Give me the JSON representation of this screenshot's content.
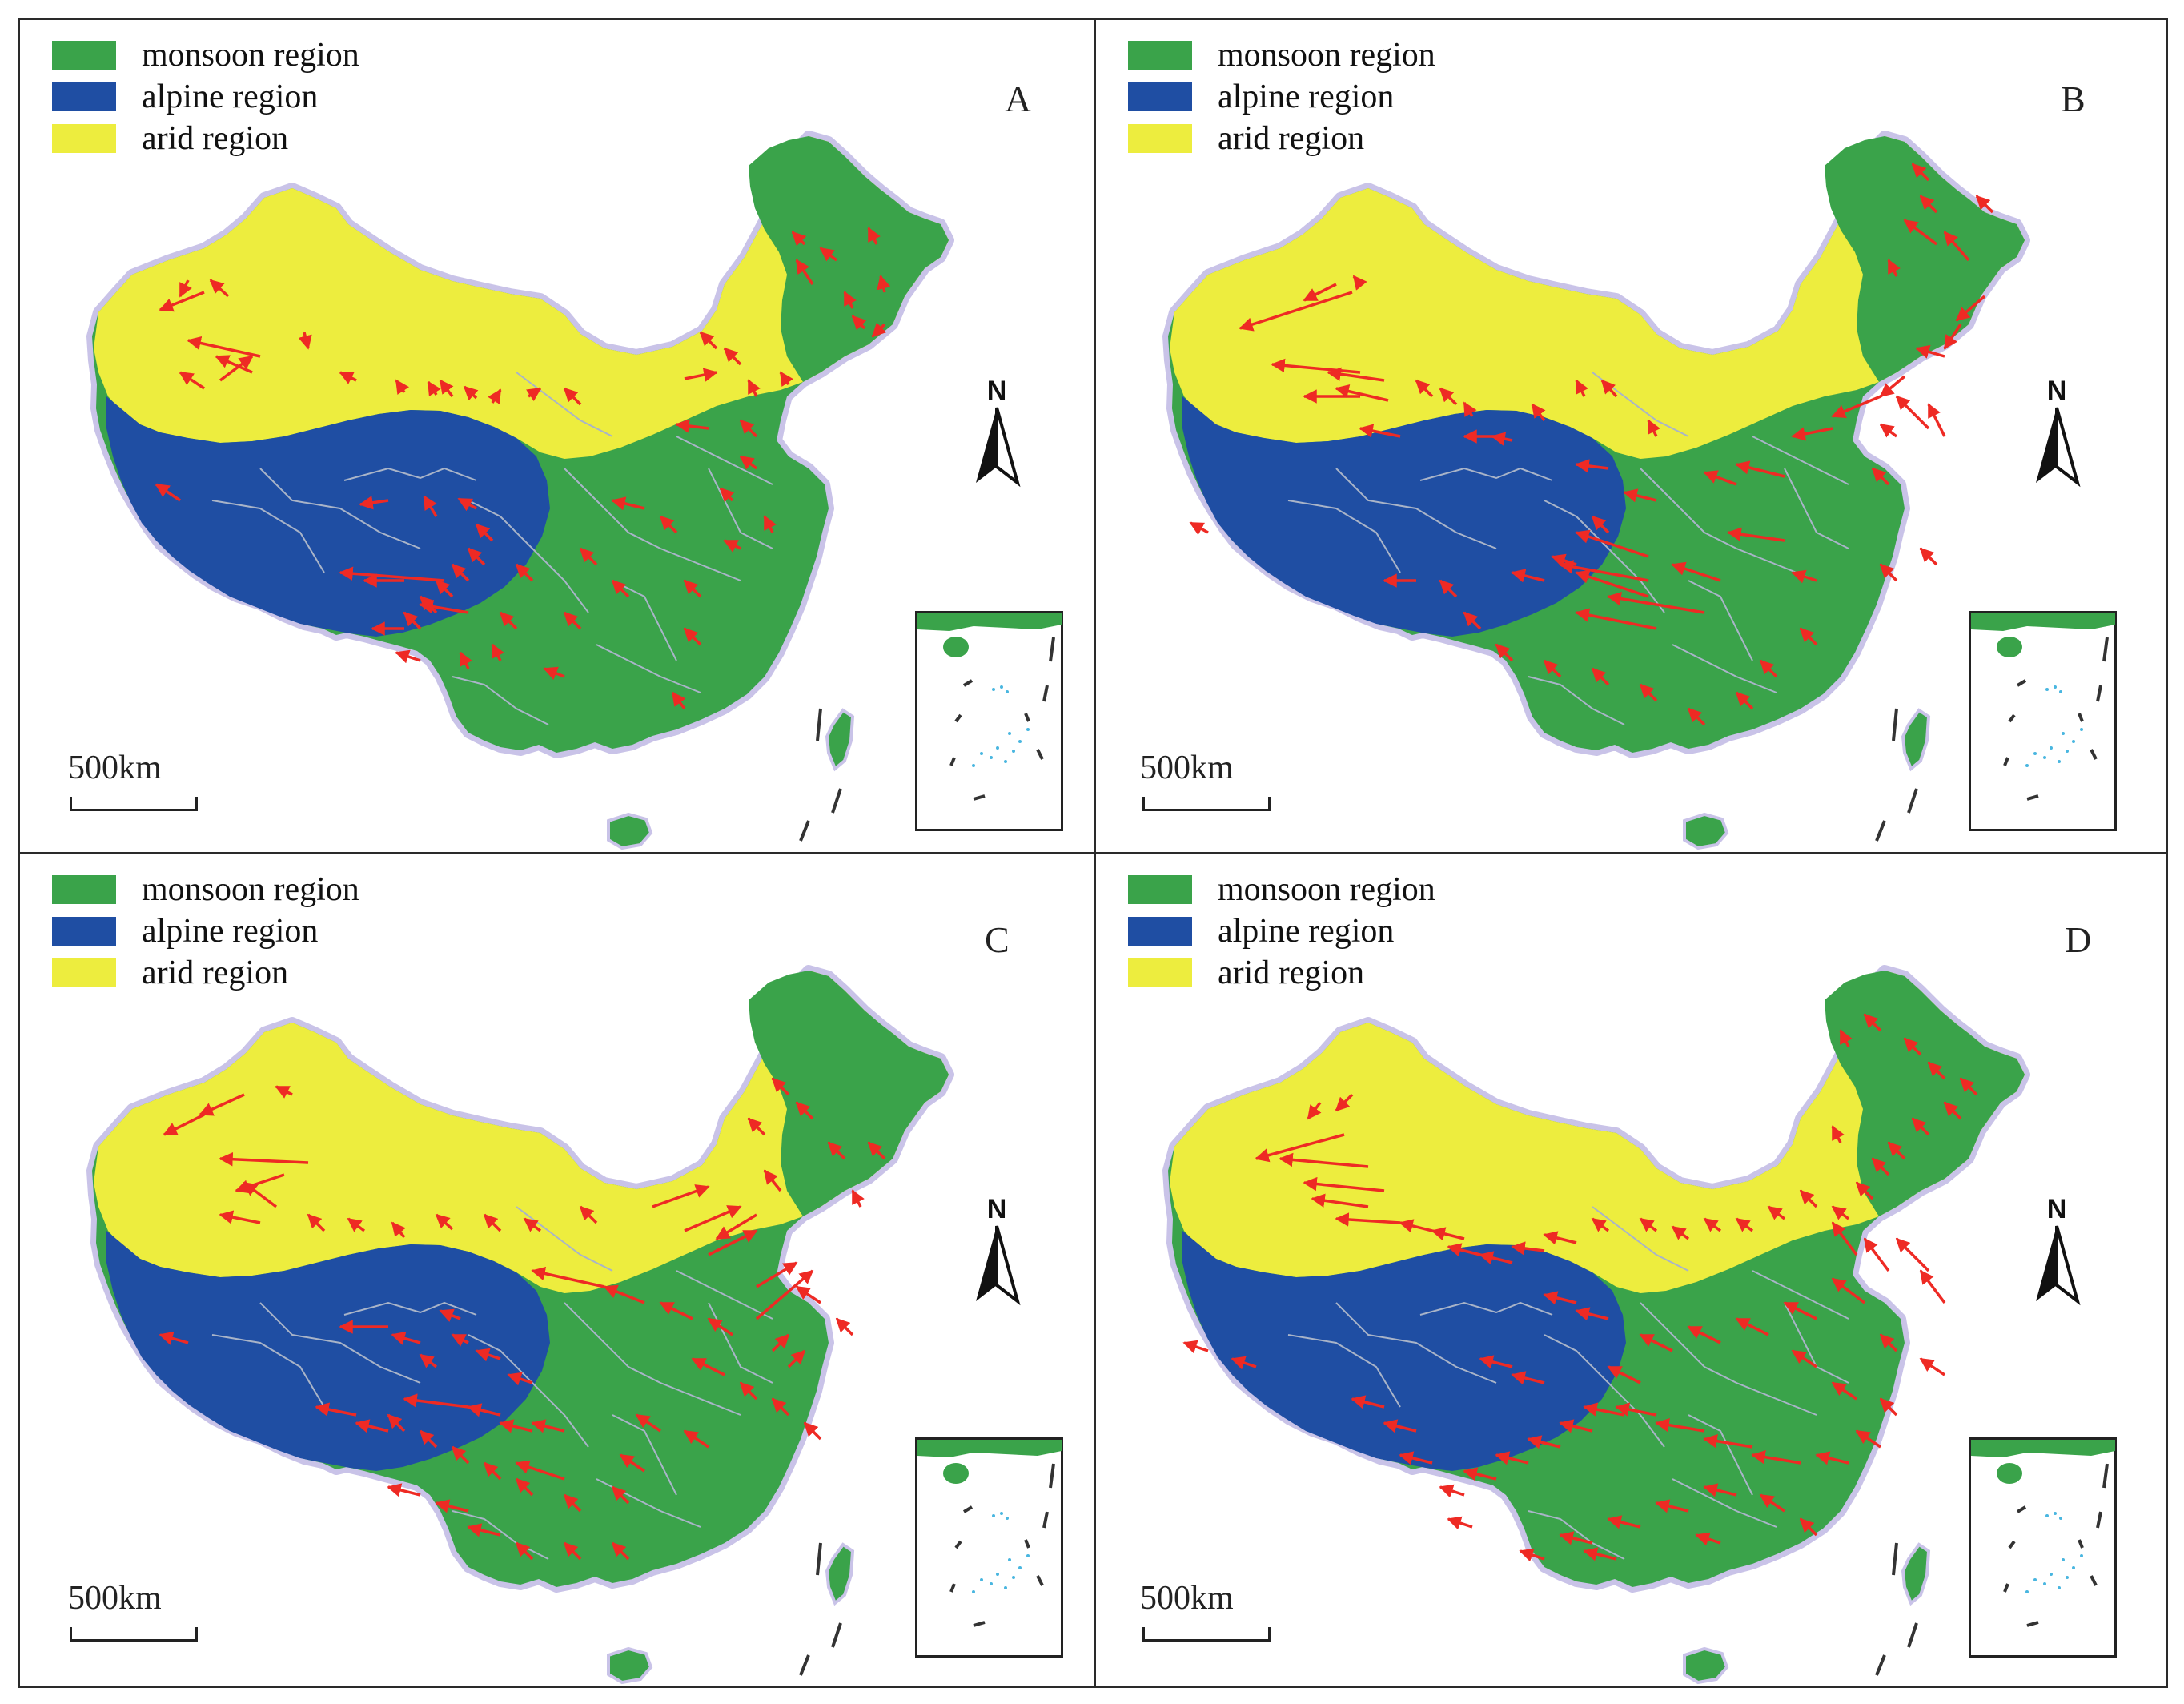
{
  "legend": [
    {
      "label": "monsoon region",
      "color": "#3aa34a"
    },
    {
      "label": "alpine region",
      "color": "#1f4ea3"
    },
    {
      "label": "arid region",
      "color": "#eded3e"
    }
  ],
  "panels": [
    {
      "letter": "A",
      "arrow_set": "A"
    },
    {
      "letter": "B",
      "arrow_set": "B"
    },
    {
      "letter": "C",
      "arrow_set": "C"
    },
    {
      "letter": "D",
      "arrow_set": "D"
    }
  ],
  "scale_label": "500km",
  "north_label": "N",
  "colors": {
    "monsoon": "#3aa34a",
    "alpine": "#1f4ea3",
    "arid": "#eded3e",
    "arrow": "#ee2a24",
    "boundary": "#a9b4c8",
    "halo": "#c9c3e8",
    "frame": "#2a2a2a"
  },
  "icons": [
    "north-arrow-icon",
    "scale-bar-icon",
    "south-china-sea-inset-icon"
  ]
}
